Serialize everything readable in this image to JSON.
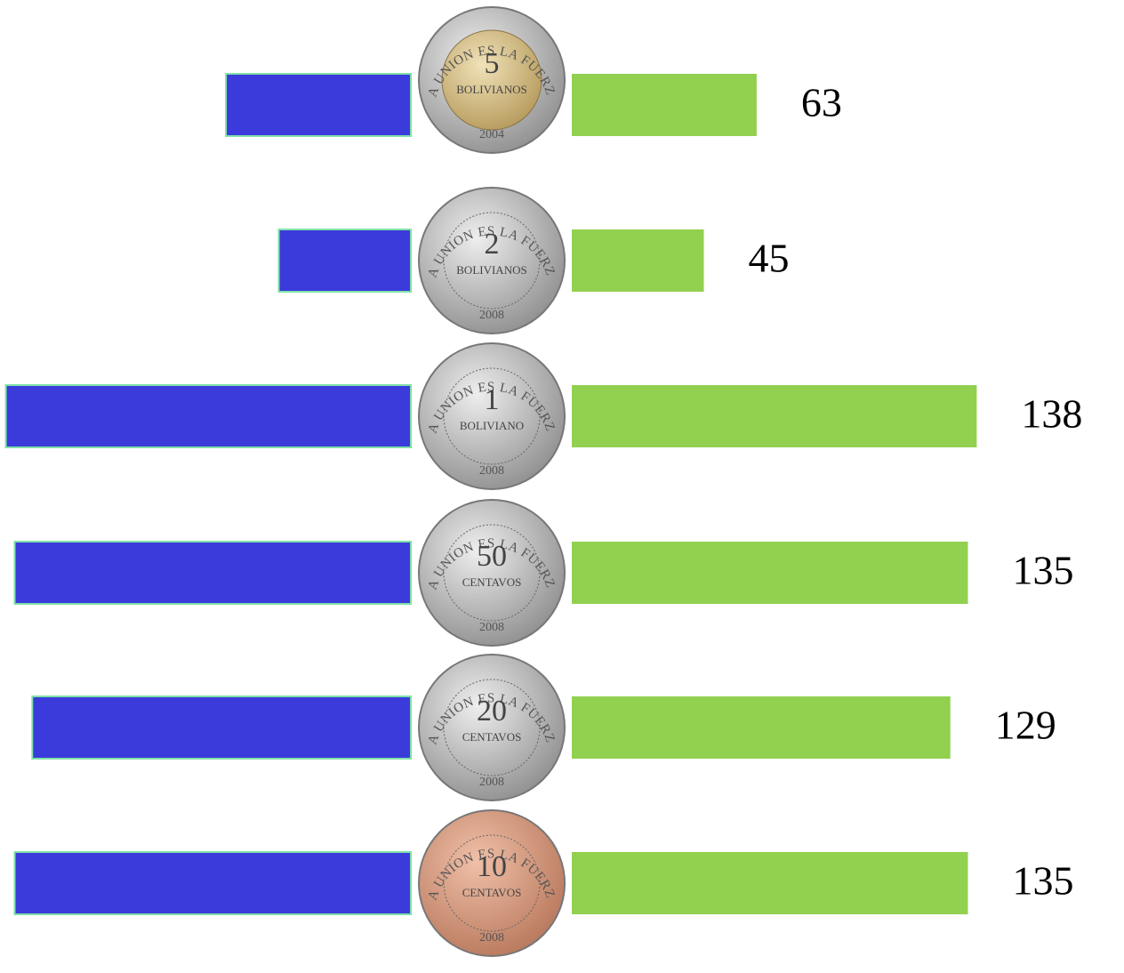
{
  "chart_data": {
    "type": "butterfly-bar",
    "motto": "LA UNION ES LA FUERZA",
    "coins": [
      {
        "denomination": "5",
        "unit": "BOLIVIANOS",
        "year": "2004"
      },
      {
        "denomination": "2",
        "unit": "BOLIVIANOS",
        "year": "2008"
      },
      {
        "denomination": "1",
        "unit": "BOLIVIANO",
        "year": "2008"
      },
      {
        "denomination": "50",
        "unit": "CENTAVOS",
        "year": "2008"
      },
      {
        "denomination": "20",
        "unit": "CENTAVOS",
        "year": "2008"
      },
      {
        "denomination": "10",
        "unit": "CENTAVOS",
        "year": "2008"
      }
    ],
    "values": [
      63,
      45,
      138,
      135,
      129,
      135
    ],
    "left_color": "#3b3bdb",
    "right_color": "#92d050"
  }
}
